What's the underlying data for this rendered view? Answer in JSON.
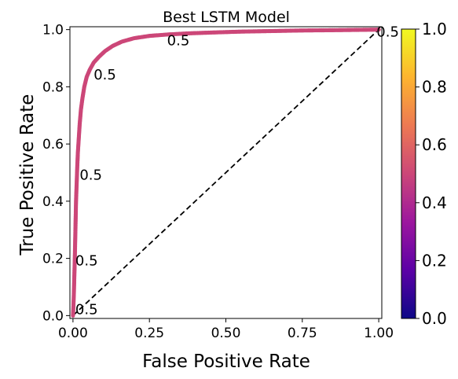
{
  "chart_data": {
    "type": "scatter",
    "title": "Best LSTM Model",
    "xlabel": "False Positive Rate",
    "ylabel": "True Positive Rate",
    "xlim": [
      -0.01,
      1.01
    ],
    "ylim": [
      -0.01,
      1.01
    ],
    "xticks": [
      "0.00",
      "0.25",
      "0.50",
      "0.75",
      "1.00"
    ],
    "yticks": [
      "0.0",
      "0.2",
      "0.4",
      "0.6",
      "0.8",
      "1.0"
    ],
    "grid": false,
    "marker_color": "#cc4778",
    "roc_points": [
      {
        "x": 0.0,
        "y": 0.0
      },
      {
        "x": 0.001,
        "y": 0.02
      },
      {
        "x": 0.002,
        "y": 0.05
      },
      {
        "x": 0.003,
        "y": 0.08
      },
      {
        "x": 0.004,
        "y": 0.12
      },
      {
        "x": 0.005,
        "y": 0.16
      },
      {
        "x": 0.006,
        "y": 0.2
      },
      {
        "x": 0.007,
        "y": 0.25
      },
      {
        "x": 0.008,
        "y": 0.3
      },
      {
        "x": 0.009,
        "y": 0.35
      },
      {
        "x": 0.01,
        "y": 0.4
      },
      {
        "x": 0.012,
        "y": 0.46
      },
      {
        "x": 0.014,
        "y": 0.52
      },
      {
        "x": 0.016,
        "y": 0.57
      },
      {
        "x": 0.019,
        "y": 0.62
      },
      {
        "x": 0.022,
        "y": 0.67
      },
      {
        "x": 0.026,
        "y": 0.72
      },
      {
        "x": 0.031,
        "y": 0.76
      },
      {
        "x": 0.037,
        "y": 0.8
      },
      {
        "x": 0.045,
        "y": 0.835
      },
      {
        "x": 0.055,
        "y": 0.86
      },
      {
        "x": 0.068,
        "y": 0.885
      },
      {
        "x": 0.085,
        "y": 0.905
      },
      {
        "x": 0.105,
        "y": 0.925
      },
      {
        "x": 0.13,
        "y": 0.943
      },
      {
        "x": 0.16,
        "y": 0.958
      },
      {
        "x": 0.2,
        "y": 0.97
      },
      {
        "x": 0.25,
        "y": 0.978
      },
      {
        "x": 0.31,
        "y": 0.983
      },
      {
        "x": 0.38,
        "y": 0.987
      },
      {
        "x": 0.46,
        "y": 0.99
      },
      {
        "x": 0.55,
        "y": 0.993
      },
      {
        "x": 0.65,
        "y": 0.995
      },
      {
        "x": 0.75,
        "y": 0.997
      },
      {
        "x": 0.85,
        "y": 0.998
      },
      {
        "x": 0.93,
        "y": 0.999
      },
      {
        "x": 1.0,
        "y": 1.0
      }
    ],
    "diagonal": [
      {
        "x": 0,
        "y": 0
      },
      {
        "x": 1,
        "y": 1
      }
    ],
    "threshold_annotations": [
      {
        "x": 0.0,
        "y": 0.0,
        "text": "0.5"
      },
      {
        "x": 0.0,
        "y": 0.17,
        "text": "0.5"
      },
      {
        "x": 0.014,
        "y": 0.47,
        "text": "0.5"
      },
      {
        "x": 0.06,
        "y": 0.82,
        "text": "0.5"
      },
      {
        "x": 0.3,
        "y": 0.94,
        "text": "0.5"
      },
      {
        "x": 0.985,
        "y": 0.97,
        "text": "0.5"
      }
    ],
    "colorbar": {
      "colormap": "plasma",
      "range": [
        0.0,
        1.0
      ],
      "ticks": [
        "0.0",
        "0.2",
        "0.4",
        "0.6",
        "0.8",
        "1.0"
      ],
      "stops": [
        "#0d0887",
        "#5c01a6",
        "#9c179e",
        "#cc4778",
        "#ed7953",
        "#fdb42f",
        "#f0f921"
      ]
    }
  }
}
